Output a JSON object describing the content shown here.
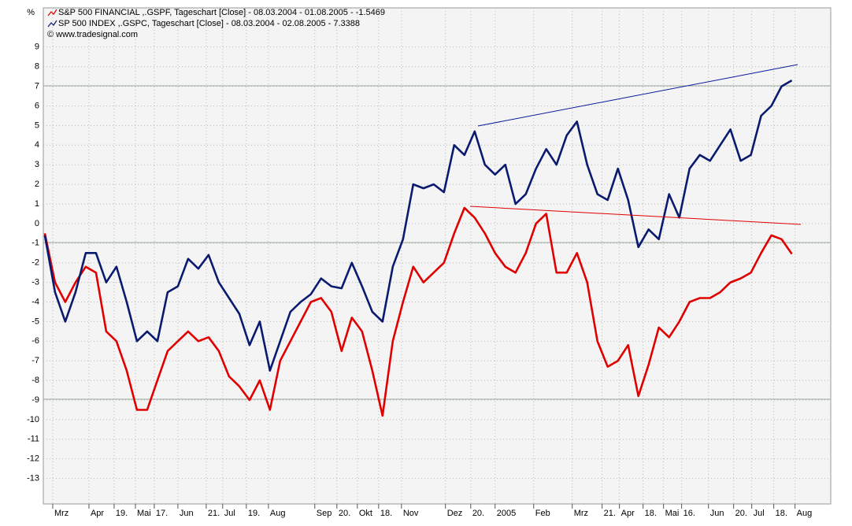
{
  "chart_data": {
    "type": "line",
    "y_unit": "%",
    "copyright": "© www.tradesignal.com",
    "series": [
      {
        "name": "S&P 500 FINANCIAL ,.GSPF, Tageschart [Close] - 08.03.2004 - 01.08.2005 - -1.5469",
        "color": "#e00000",
        "values": [
          -0.5,
          -3,
          -4,
          -3,
          -2.2,
          -2.5,
          -5.5,
          -6,
          -7.5,
          -9.5,
          -9.5,
          -8,
          -6.5,
          -6,
          -5.5,
          -6,
          -5.8,
          -6.5,
          -7.8,
          -8.3,
          -9,
          -8,
          -9.5,
          -7,
          -6,
          -5,
          -4,
          -3.8,
          -4.5,
          -6.5,
          -4.8,
          -5.5,
          -7.5,
          -9.8,
          -6,
          -4,
          -2.2,
          -3,
          -2.5,
          -2,
          -0.5,
          0.8,
          0.3,
          -0.5,
          -1.5,
          -2.2,
          -2.5,
          -1.5,
          0,
          0.5,
          -2.5,
          -2.5,
          -1.5,
          -3,
          -6,
          -7.3,
          -7,
          -6.2,
          -8.8,
          -7.2,
          -5.3,
          -5.8,
          -5,
          -4,
          -3.8,
          -3.8,
          -3.5,
          -3,
          -2.8,
          -2.5,
          -1.5,
          -0.6,
          -0.8,
          -1.55
        ]
      },
      {
        "name": "SP 500 INDEX ,.GSPC, Tageschart [Close] - 08.03.2004 - 02.08.2005 - 7.3388",
        "color": "#0a1a6e",
        "values": [
          -0.6,
          -3.5,
          -5,
          -3.5,
          -1.5,
          -1.5,
          -3,
          -2.2,
          -4,
          -6,
          -5.5,
          -6,
          -3.5,
          -3.2,
          -1.8,
          -2.3,
          -1.6,
          -3,
          -3.8,
          -4.6,
          -6.2,
          -5,
          -7.5,
          -6,
          -4.5,
          -4,
          -3.6,
          -2.8,
          -3.2,
          -3.3,
          -2,
          -3.2,
          -4.5,
          -5,
          -2.2,
          -0.8,
          2,
          1.8,
          2,
          1.6,
          4,
          3.5,
          4.7,
          3,
          2.5,
          3,
          1,
          1.5,
          2.8,
          3.8,
          3,
          4.5,
          5.2,
          3,
          1.5,
          1.2,
          2.8,
          1.2,
          -1.2,
          -0.3,
          -0.8,
          1.5,
          0.3,
          2.8,
          3.5,
          3.2,
          4,
          4.8,
          3.2,
          3.5,
          5.5,
          6,
          7,
          7.3
        ]
      }
    ],
    "xlim": [
      -0.15,
      76.8
    ],
    "xticks": [
      {
        "value": 0.77,
        "label": "Mrz"
      },
      {
        "value": 4.31,
        "label": "Apr"
      },
      {
        "value": 6.77,
        "label": "19."
      },
      {
        "value": 8.85,
        "label": "Mai"
      },
      {
        "value": 10.69,
        "label": "17."
      },
      {
        "value": 13,
        "label": "Jun"
      },
      {
        "value": 15.77,
        "label": "21."
      },
      {
        "value": 17.38,
        "label": "Jul"
      },
      {
        "value": 19.69,
        "label": "19."
      },
      {
        "value": 21.85,
        "label": "Aug"
      },
      {
        "value": 26.38,
        "label": "Sep"
      },
      {
        "value": 28.54,
        "label": "20."
      },
      {
        "value": 30.54,
        "label": "Okt"
      },
      {
        "value": 32.62,
        "label": "18."
      },
      {
        "value": 34.85,
        "label": "Nov"
      },
      {
        "value": 39.15,
        "label": "Dez"
      },
      {
        "value": 41.62,
        "label": "20."
      },
      {
        "value": 44,
        "label": "2005"
      },
      {
        "value": 47.77,
        "label": "Feb"
      },
      {
        "value": 51.54,
        "label": "Mrz"
      },
      {
        "value": 54.46,
        "label": "21."
      },
      {
        "value": 56.15,
        "label": "Apr"
      },
      {
        "value": 58.46,
        "label": "18."
      },
      {
        "value": 60.46,
        "label": "Mai"
      },
      {
        "value": 62.23,
        "label": "16."
      },
      {
        "value": 64.85,
        "label": "Jun"
      },
      {
        "value": 67.31,
        "label": "20."
      },
      {
        "value": 69.08,
        "label": "Jul"
      },
      {
        "value": 71.23,
        "label": "18."
      },
      {
        "value": 73.31,
        "label": "Aug"
      }
    ],
    "ylim": [
      -14.3,
      11
    ],
    "yticks": [
      -13,
      -12,
      -11,
      -10,
      -9,
      -8,
      -7,
      -6,
      -5,
      -4,
      -3,
      -2,
      -1,
      0,
      1,
      2,
      3,
      4,
      5,
      6,
      7,
      8,
      9
    ],
    "grid": true
  }
}
